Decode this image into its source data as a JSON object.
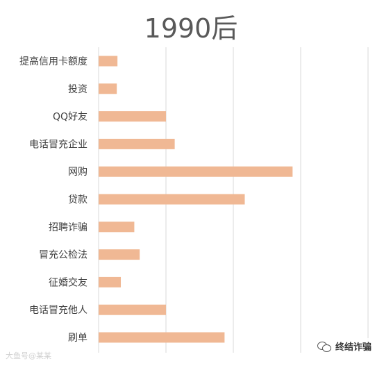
{
  "chart_data": {
    "type": "bar",
    "orientation": "horizontal",
    "title": "1990后",
    "categories": [
      "提高信用卡额度",
      "投资",
      "QQ好友",
      "电话冒充企业",
      "网购",
      "贷款",
      "招聘诈骗",
      "冒充公检法",
      "征婚交友",
      "电话冒充他人",
      "刷单"
    ],
    "values": [
      0.28,
      0.27,
      1.0,
      1.13,
      2.88,
      2.17,
      0.53,
      0.61,
      0.33,
      1.0,
      1.87
    ],
    "xlim": [
      0,
      4
    ],
    "grid": true,
    "tick_labels_visible": false,
    "bar_color": "#f0b894",
    "title_color": "#595959",
    "label_color": "#404040",
    "grid_color": "#d9d9d9"
  },
  "watermark_left": "大鱼号@某某",
  "watermark_right": "终结诈骗"
}
